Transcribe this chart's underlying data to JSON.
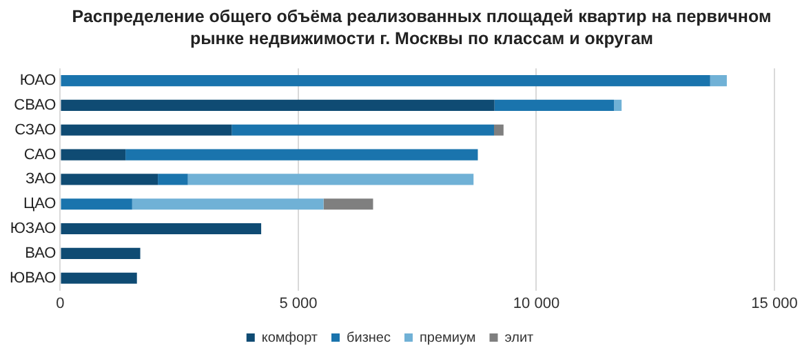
{
  "chart_data": {
    "type": "bar",
    "orientation": "horizontal",
    "stacked": true,
    "title": "Распределение общего объёма реализованных  площадей квартир  на первичном рынке недвижимости г. Москвы по классам и округам",
    "categories": [
      "ЮАО",
      "СВАО",
      "СЗАО",
      "САО",
      "ЗАО",
      "ЦАО",
      "ЮЗАО",
      "ВАО",
      "ЮВАО"
    ],
    "series": [
      {
        "name": "комфорт",
        "color": "#0f4b73",
        "values": [
          0,
          9120,
          3600,
          1370,
          2050,
          0,
          4220,
          1680,
          1610
        ]
      },
      {
        "name": "бизнес",
        "color": "#1a74ad",
        "values": [
          13650,
          2510,
          5510,
          7400,
          630,
          1510,
          0,
          0,
          0
        ]
      },
      {
        "name": "премиум",
        "color": "#70b1d6",
        "values": [
          350,
          160,
          0,
          0,
          6000,
          4020,
          0,
          0,
          0
        ]
      },
      {
        "name": "элит",
        "color": "#7f7f7f",
        "values": [
          0,
          0,
          200,
          0,
          0,
          1040,
          0,
          0,
          0
        ]
      }
    ],
    "xlim": [
      0,
      15000
    ],
    "xticks": [
      0,
      {
        "value": 5000,
        "label": "5 000"
      },
      {
        "value": 10000,
        "label": "10 000"
      },
      {
        "value": 15000,
        "label": "15 000"
      }
    ],
    "grid": "x",
    "legend": "bottom"
  }
}
